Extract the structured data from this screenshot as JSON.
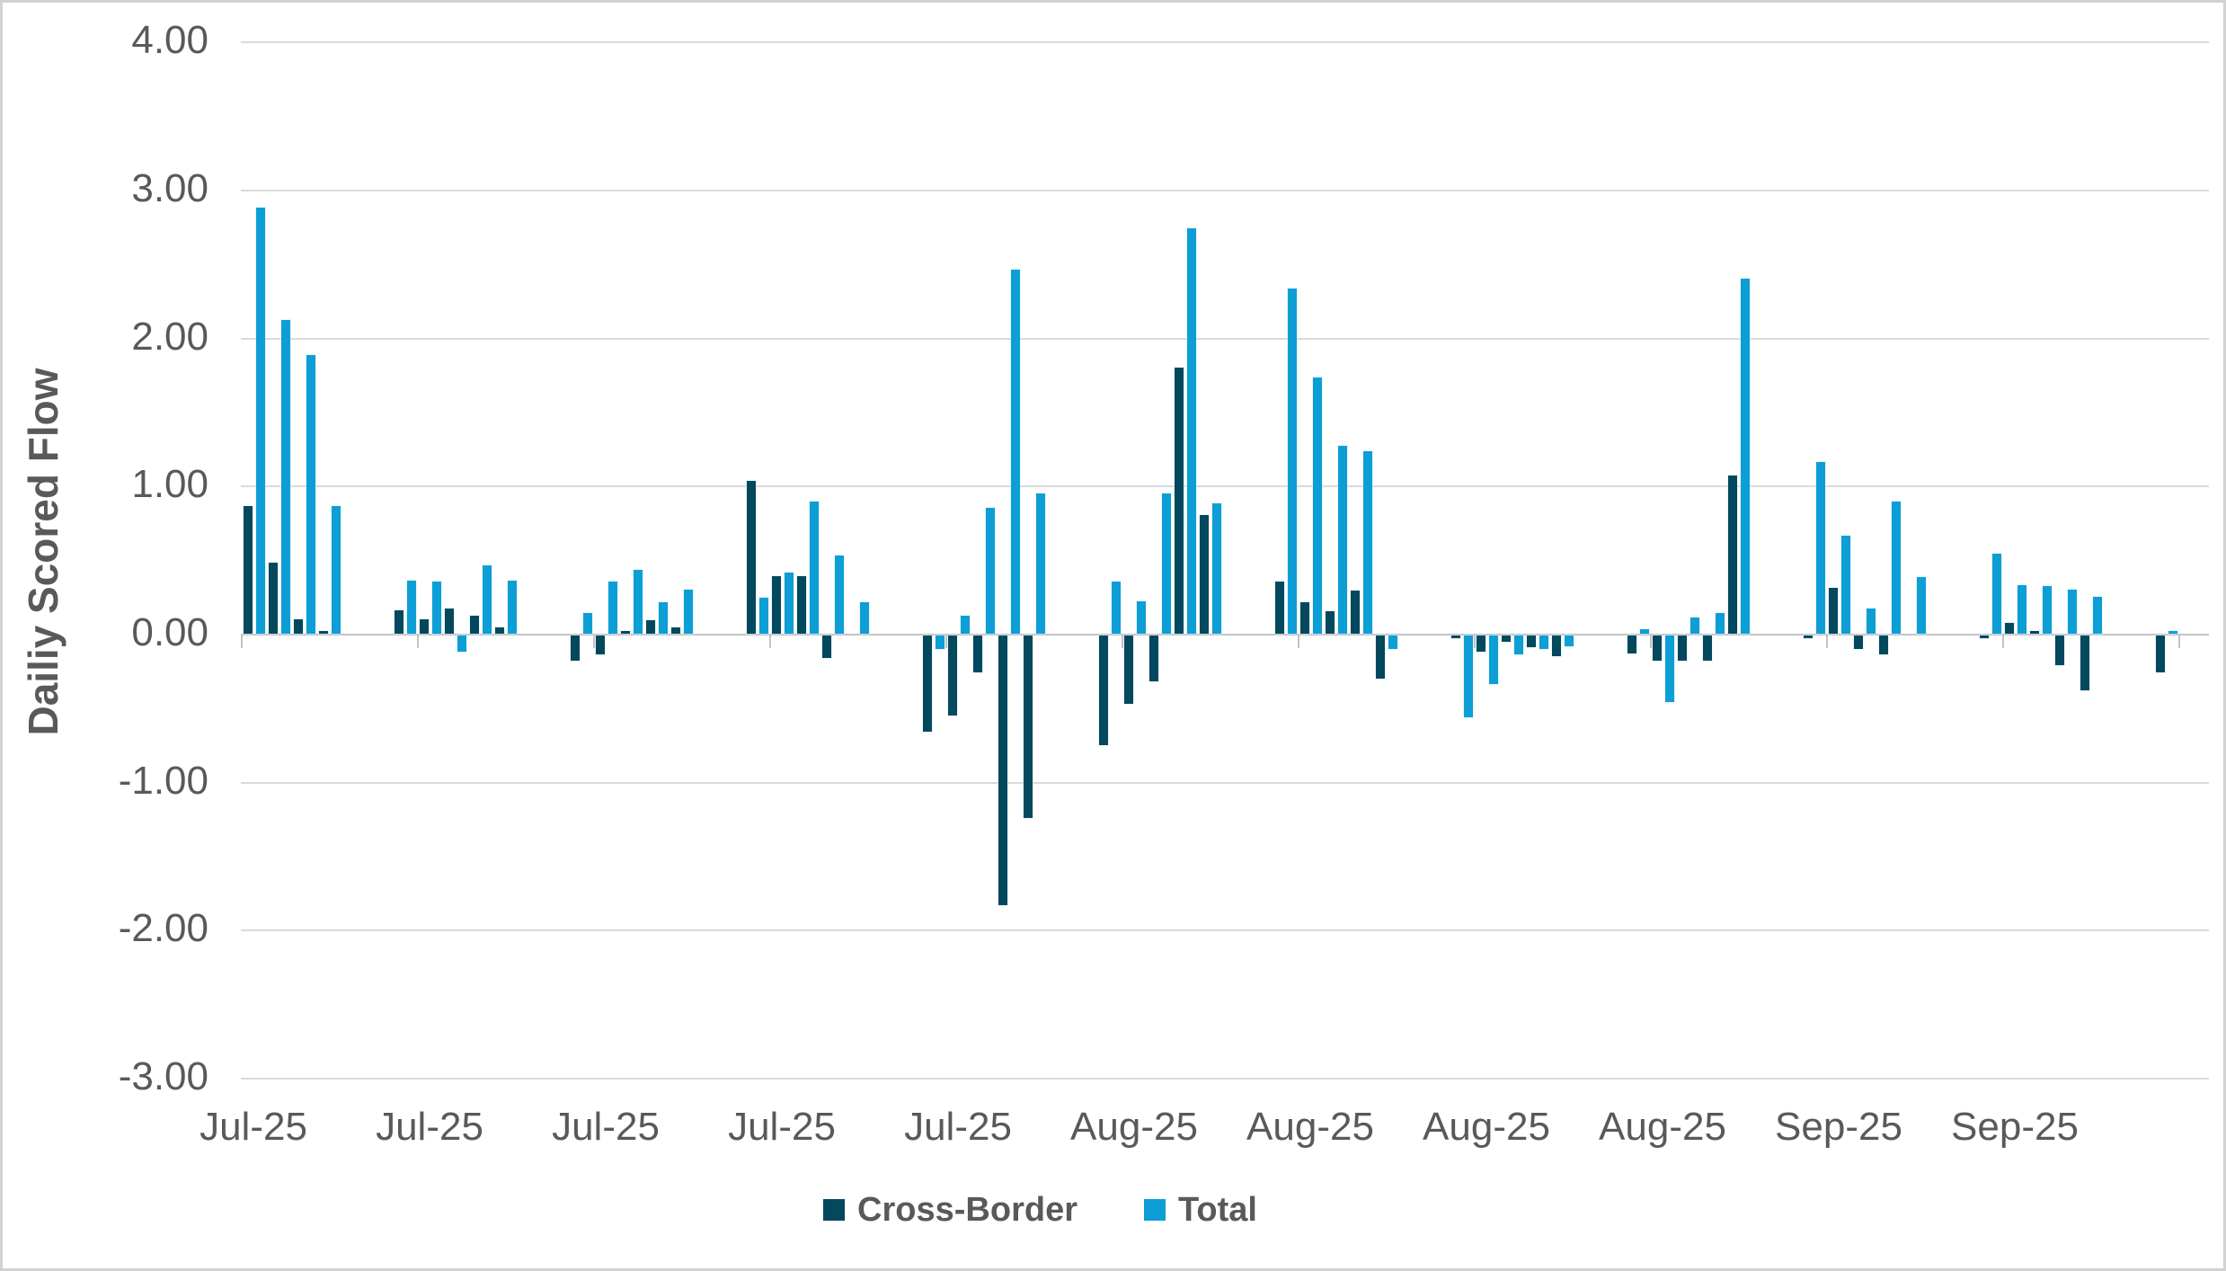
{
  "chart": {
    "y_axis_title": "Dailiy Scored Flow",
    "y_tick_labels": [
      "4.00",
      "3.00",
      "2.00",
      "1.00",
      "0.00",
      "-1.00",
      "-2.00",
      "-3.00"
    ],
    "legend": {
      "cross_border_label": "Cross-Border",
      "total_label": "Total"
    },
    "colors": {
      "cross_border": "#04485E",
      "total": "#0D9ED6",
      "gridline": "#DADADA",
      "axis": "#C3C3C3",
      "text": "#595959"
    }
  },
  "chart_data": {
    "type": "bar",
    "title": "",
    "xlabel": "",
    "ylabel": "Dailiy Scored Flow",
    "ylim": [
      -3.0,
      4.0
    ],
    "y_ticks": [
      4.0,
      3.0,
      2.0,
      1.0,
      0.0,
      -1.0,
      -2.0,
      -3.0
    ],
    "grid": true,
    "legend_position": "bottom",
    "series_names": [
      "Cross-Border",
      "Total"
    ],
    "note": "Daily paired bars grouped by week; weeks separated by weekend gaps; x labels show month of each week",
    "weeks": [
      {
        "x_label": "Jul-25",
        "cross_border": [
          0.86,
          0.48,
          0.1,
          0.02
        ],
        "total": [
          2.88,
          2.12,
          1.88,
          0.86
        ]
      },
      {
        "x_label": "Jul-25",
        "cross_border": [
          0.16,
          0.1,
          0.17,
          0.12,
          0.04
        ],
        "total": [
          0.36,
          0.35,
          -0.11,
          0.46,
          0.36
        ]
      },
      {
        "x_label": "Jul-25",
        "cross_border": [
          -0.17,
          -0.13,
          0.02,
          0.09,
          0.04
        ],
        "total": [
          0.14,
          0.35,
          0.43,
          0.21,
          0.3
        ]
      },
      {
        "x_label": "Jul-25",
        "cross_border": [
          1.03,
          0.39,
          0.39,
          -0.15,
          0.0
        ],
        "total": [
          0.24,
          0.41,
          0.89,
          0.53,
          0.21
        ]
      },
      {
        "x_label": "Jul-25",
        "cross_border": [
          -0.65,
          -0.54,
          -0.25,
          -1.82,
          -1.23
        ],
        "total": [
          -0.09,
          0.12,
          0.85,
          2.46,
          0.95
        ]
      },
      {
        "x_label": "Aug-25",
        "cross_border": [
          -0.74,
          -0.46,
          -0.31,
          1.8,
          0.8
        ],
        "total": [
          0.35,
          0.22,
          0.95,
          2.74,
          0.88
        ]
      },
      {
        "x_label": "Aug-25",
        "cross_border": [
          0.35,
          0.21,
          0.15,
          0.29,
          -0.29
        ],
        "total": [
          2.33,
          1.73,
          1.27,
          1.23,
          -0.09
        ]
      },
      {
        "x_label": "Aug-25",
        "cross_border": [
          -0.02,
          -0.11,
          -0.04,
          -0.08,
          -0.14
        ],
        "total": [
          -0.55,
          -0.33,
          -0.13,
          -0.09,
          -0.07
        ]
      },
      {
        "x_label": "Aug-25",
        "cross_border": [
          -0.12,
          -0.17,
          -0.17,
          -0.17,
          1.07
        ],
        "total": [
          0.03,
          -0.45,
          0.11,
          0.14,
          2.4
        ]
      },
      {
        "x_label": "Sep-25",
        "cross_border": [
          -0.02,
          0.31,
          -0.09,
          -0.13,
          0.0
        ],
        "total": [
          1.16,
          0.66,
          0.17,
          0.89,
          0.38
        ]
      },
      {
        "x_label": "Sep-25",
        "cross_border": [
          -0.02,
          0.07,
          0.02,
          -0.2,
          -0.37
        ],
        "total": [
          0.54,
          0.33,
          0.32,
          0.3,
          0.25
        ]
      },
      {
        "x_label": "",
        "cross_border": [
          -0.25
        ],
        "total": [
          0.02
        ]
      }
    ]
  }
}
